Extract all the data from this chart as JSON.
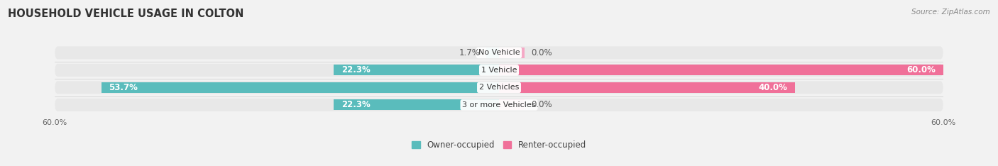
{
  "title": "HOUSEHOLD VEHICLE USAGE IN COLTON",
  "source": "Source: ZipAtlas.com",
  "categories": [
    "No Vehicle",
    "1 Vehicle",
    "2 Vehicles",
    "3 or more Vehicles"
  ],
  "owner_values": [
    1.7,
    22.3,
    53.7,
    22.3
  ],
  "renter_values": [
    0.0,
    60.0,
    40.0,
    0.0
  ],
  "renter_stub": 3.5,
  "owner_color": "#5abcbc",
  "renter_color": "#f07099",
  "renter_stub_color": "#f5a8c5",
  "owner_label": "Owner-occupied",
  "renter_label": "Renter-occupied",
  "max_val": 60,
  "bar_height": 0.62,
  "bar_gap": 0.12,
  "bg_color": "#f2f2f2",
  "row_bg_color": "#e8e8e8",
  "title_fontsize": 10.5,
  "source_fontsize": 7.5,
  "label_fontsize": 8.5,
  "cat_fontsize": 8.0,
  "axis_label_fontsize": 8,
  "legend_fontsize": 8.5
}
